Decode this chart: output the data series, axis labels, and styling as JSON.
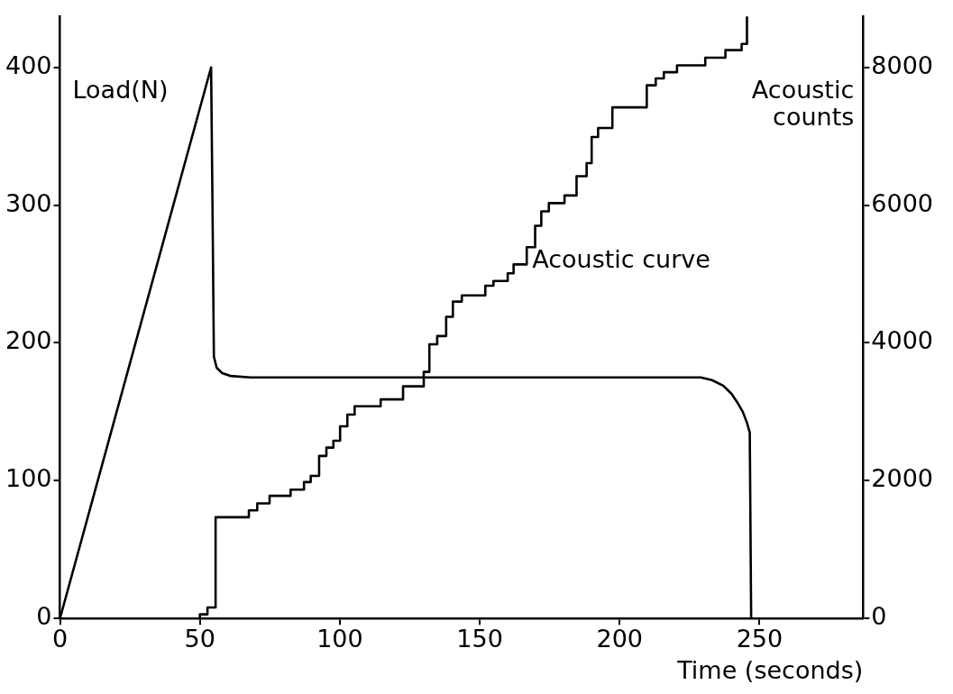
{
  "chart_data": {
    "type": "line",
    "ylabel": "Load(N)",
    "y2label": "Acoustic counts",
    "xlabel": "Time (seconds)",
    "xlim": [
      0,
      287
    ],
    "xticks": [
      0,
      50,
      100,
      150,
      200,
      250
    ],
    "ylim": [
      0,
      437
    ],
    "yticks": [
      0,
      100,
      200,
      300,
      400
    ],
    "y2lim": [
      0,
      8740
    ],
    "y2ticks": [
      0,
      2000,
      4000,
      6000,
      8000
    ],
    "grid": false,
    "legend": false,
    "marker": "none",
    "line_style": "solid",
    "series": [
      {
        "axis": "y",
        "color": "#000000",
        "x": [
          0,
          54,
          54.5,
          55,
          56,
          58,
          61,
          68,
          229,
          233,
          237,
          240,
          242,
          244,
          245.5,
          246.5,
          247
        ],
        "values": [
          0,
          400,
          300,
          190,
          182,
          178,
          176,
          175,
          175,
          173,
          169,
          163,
          157,
          150,
          142,
          135,
          0
        ]
      },
      {
        "type": "step",
        "axis": "y2",
        "name": "Acoustic curve",
        "color": "#000000",
        "x": [
          49.5,
          50,
          52.7,
          55.6,
          67.5,
          70.5,
          74.9,
          82.4,
          87.2,
          89.6,
          92.6,
          95.2,
          97.7,
          100.1,
          102.7,
          105.3,
          114.6,
          122.6,
          130,
          132,
          134.8,
          138,
          140.4,
          143.6,
          152,
          154.9,
          160,
          162.1,
          166.8,
          169.8,
          172,
          174.7,
          180.3,
          184.6,
          188.2,
          190,
          192.3,
          197.4,
          209.7,
          212.9,
          215.8,
          220.5,
          230.6,
          237.8,
          243.6,
          245.5
        ],
        "values": [
          0,
          60,
          160,
          1470,
          1570,
          1670,
          1780,
          1870,
          1980,
          2070,
          2360,
          2480,
          2580,
          2790,
          2960,
          3080,
          3180,
          3370,
          3580,
          3980,
          4100,
          4380,
          4600,
          4690,
          4830,
          4900,
          5010,
          5140,
          5390,
          5700,
          5910,
          6030,
          6140,
          6420,
          6610,
          6990,
          7120,
          7420,
          7740,
          7840,
          7930,
          8030,
          8140,
          8250,
          8340,
          8740
        ]
      }
    ]
  }
}
